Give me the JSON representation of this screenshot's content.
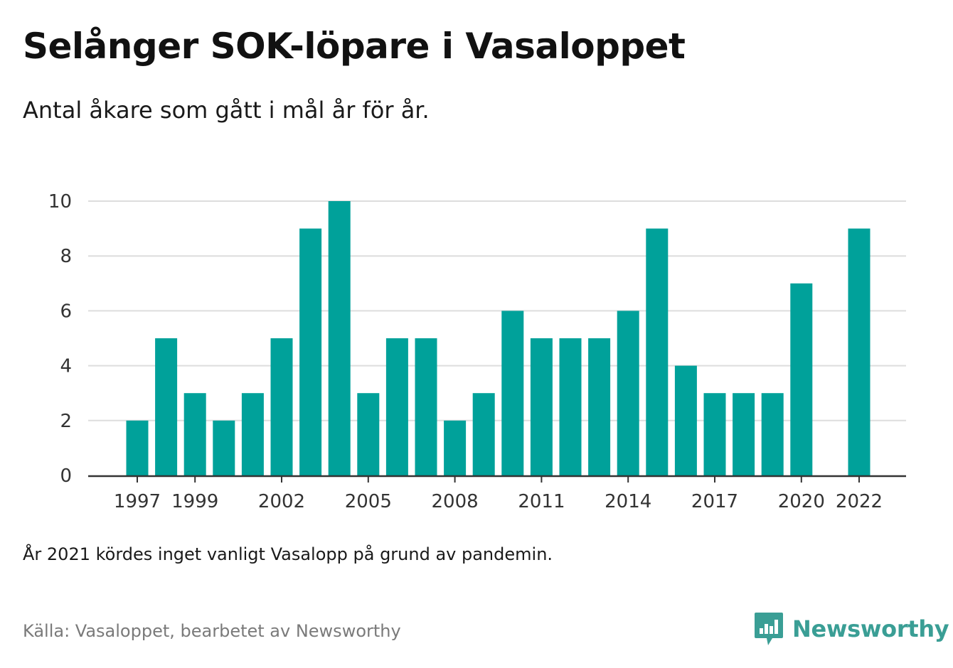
{
  "header": {
    "title": "Selånger SOK-löpare i Vasaloppet",
    "subtitle": "Antal åkare som gått i mål år för år."
  },
  "footer": {
    "note": "År 2021 kördes inget vanligt Vasalopp på grund av pandemin.",
    "source": "Källa: Vasaloppet, bearbetet av Newsworthy",
    "brand": "Newsworthy"
  },
  "colors": {
    "bar": "#00a19a",
    "grid": "#dddddd",
    "axis": "#333333",
    "brand": "#3a9e95"
  },
  "chart_data": {
    "type": "bar",
    "title": "Selånger SOK-löpare i Vasaloppet",
    "subtitle": "Antal åkare som gått i mål år för år.",
    "xlabel": "",
    "ylabel": "",
    "categories": [
      1997,
      1998,
      1999,
      2000,
      2001,
      2002,
      2003,
      2004,
      2005,
      2006,
      2007,
      2008,
      2009,
      2010,
      2011,
      2012,
      2013,
      2014,
      2015,
      2016,
      2017,
      2018,
      2019,
      2020,
      2021,
      2022
    ],
    "values": [
      2,
      5,
      3,
      2,
      3,
      5,
      9,
      10,
      3,
      5,
      5,
      2,
      3,
      6,
      5,
      5,
      5,
      6,
      9,
      4,
      3,
      3,
      3,
      7,
      null,
      9
    ],
    "ylim": [
      0,
      10
    ],
    "yticks": [
      0,
      2,
      4,
      6,
      8,
      10
    ],
    "xticks": [
      1997,
      1999,
      2002,
      2005,
      2008,
      2011,
      2014,
      2017,
      2020,
      2022
    ],
    "grid": true,
    "legend": "none"
  }
}
